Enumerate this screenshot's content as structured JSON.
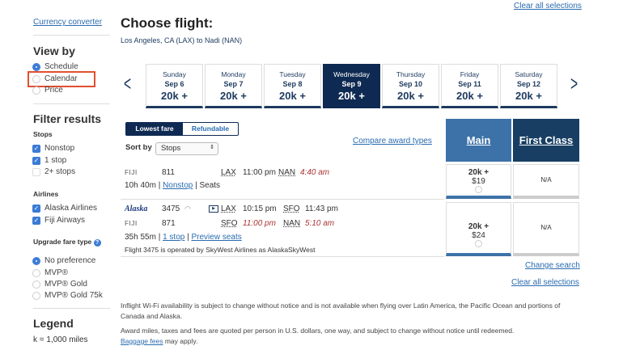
{
  "top_links": {
    "clear_all": "Clear all selections"
  },
  "sidebar": {
    "currency_converter": "Currency converter",
    "view_by": {
      "title": "View by",
      "options": [
        {
          "label": "Schedule",
          "selected": true
        },
        {
          "label": "Calendar",
          "selected": false
        },
        {
          "label": "Price",
          "selected": false
        }
      ]
    },
    "filter": {
      "title": "Filter results",
      "stops": {
        "title": "Stops",
        "options": [
          {
            "label": "Nonstop",
            "checked": true
          },
          {
            "label": "1 stop",
            "checked": true
          },
          {
            "label": "2+ stops",
            "checked": false
          }
        ]
      },
      "airlines": {
        "title": "Airlines",
        "options": [
          {
            "label": "Alaska Airlines",
            "checked": true
          },
          {
            "label": "Fiji Airways",
            "checked": true
          }
        ]
      },
      "upgrade": {
        "title": "Upgrade fare type",
        "options": [
          {
            "label": "No preference",
            "selected": true
          },
          {
            "label": "MVP®",
            "selected": false
          },
          {
            "label": "MVP® Gold",
            "selected": false
          },
          {
            "label": "MVP® Gold 75k",
            "selected": false
          }
        ]
      }
    },
    "legend": {
      "title": "Legend",
      "text": "k = 1,000 miles"
    }
  },
  "main": {
    "title": "Choose flight:",
    "route": "Los Angeles, CA (LAX) to Nadi (NAN)",
    "days": [
      {
        "name": "Sunday",
        "date": "Sep 6",
        "price": "20k +"
      },
      {
        "name": "Monday",
        "date": "Sep 7",
        "price": "20k +"
      },
      {
        "name": "Tuesday",
        "date": "Sep 8",
        "price": "20k +"
      },
      {
        "name": "Wednesday",
        "date": "Sep 9",
        "price": "20k +",
        "selected": true
      },
      {
        "name": "Thursday",
        "date": "Sep 10",
        "price": "20k +"
      },
      {
        "name": "Friday",
        "date": "Sep 11",
        "price": "20k +"
      },
      {
        "name": "Saturday",
        "date": "Sep 12",
        "price": "20k +"
      }
    ],
    "fare_toggle": [
      "Lowest fare",
      "Refundable"
    ],
    "sort_label": "Sort by",
    "sort_value": "Stops",
    "compare": "Compare award types",
    "cabins": [
      "Main",
      "First Class"
    ],
    "colors": {
      "navy": "#0f2a52",
      "main": "#3d72a8",
      "first": "#183f63"
    },
    "flights": [
      {
        "segments": [
          {
            "airline": "FIJI",
            "number": "811",
            "from": "LAX",
            "dep": "11:00 pm",
            "to": "NAN",
            "arr": "4:40 am"
          }
        ],
        "duration": "10h 40m",
        "stops": "Nonstop",
        "seats": "Seats",
        "main": {
          "miles": "20k +",
          "fee": "$19"
        },
        "first": "N/A"
      },
      {
        "segments": [
          {
            "airline": "Alaska",
            "number": "3475",
            "from": "LAX",
            "dep": "10:15 pm",
            "to": "SFO",
            "arr": "11:43 pm"
          },
          {
            "airline": "FIJI",
            "number": "871",
            "from": "SFO",
            "dep": "11:00 pm",
            "to": "NAN",
            "arr": "5:10 am"
          }
        ],
        "duration": "35h 55m",
        "stops": "1 stop",
        "seats": "Preview seats",
        "operated": "Flight 3475 is operated by SkyWest Airlines as AlaskaSkyWest",
        "main": {
          "miles": "20k +",
          "fee": "$24"
        },
        "first": "N/A"
      }
    ],
    "change_search": "Change search",
    "clear_all": "Clear all selections",
    "notes": {
      "wifi": "Inflight Wi-Fi availability is subject to change without notice and is not available when flying over Latin America, the Pacific Ocean and portions of Canada and Alaska.",
      "award": "Award miles, taxes and fees are quoted per person in U.S. dollars, one way, and subject to change without notice until redeemed.",
      "baggage_link": "Baggage fees",
      "baggage_rest": " may apply."
    }
  }
}
